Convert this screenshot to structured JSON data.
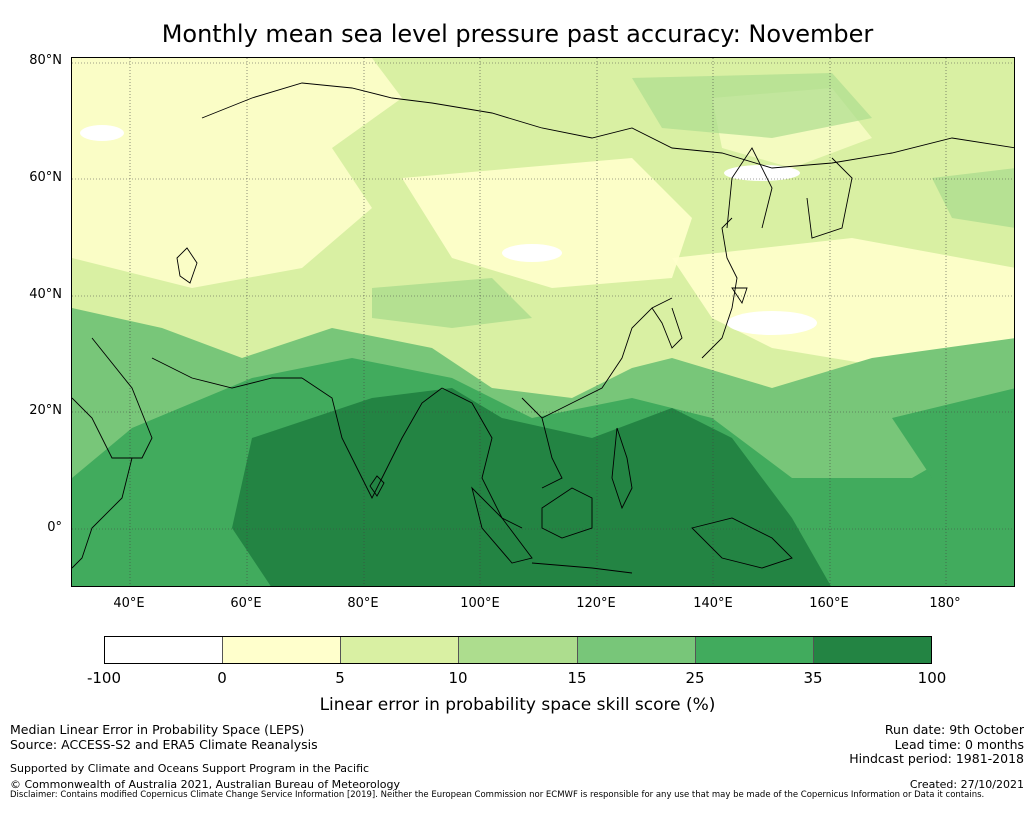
{
  "title": "Monthly mean sea level pressure past accuracy: November",
  "map": {
    "lat_labels": [
      "80°N",
      "60°N",
      "40°N",
      "20°N",
      "0°"
    ],
    "lon_labels": [
      "40°E",
      "60°E",
      "80°E",
      "100°E",
      "120°E",
      "140°E",
      "160°E",
      "180°"
    ],
    "extent": {
      "lon_min": 30,
      "lon_max": 192,
      "lat_min": -10,
      "lat_max": 81
    }
  },
  "colorbar": {
    "ticks": [
      "-100",
      "0",
      "5",
      "10",
      "15",
      "25",
      "35",
      "100"
    ],
    "colors": [
      "#ffffff",
      "#ffffcc",
      "#d9f0a3",
      "#addd8e",
      "#78c679",
      "#41ab5d",
      "#238443"
    ],
    "label": "Linear error in probability space skill score (%)"
  },
  "footer": {
    "left_line1": "Median Linear Error in Probability Space (LEPS)",
    "left_line2": "Source: ACCESS-S2 and ERA5 Climate Reanalysis",
    "supported": "Supported by Climate and Oceans Support Program in the Pacific",
    "copyright": "© Commonwealth of Australia 2021, Australian Bureau of Meteorology",
    "run_date": "Run date: 9th October",
    "lead_time": "Lead time: 0 months",
    "hindcast": "Hindcast period: 1981-2018",
    "created": "Created: 27/10/2021",
    "disclaimer": "Disclaimer: Contains modified Copernicus Climate Change Service Information [2019]. Neither the European Commission nor ECMWF is responsible for any use that may be made of the Copernicus Information or Data it contains."
  }
}
